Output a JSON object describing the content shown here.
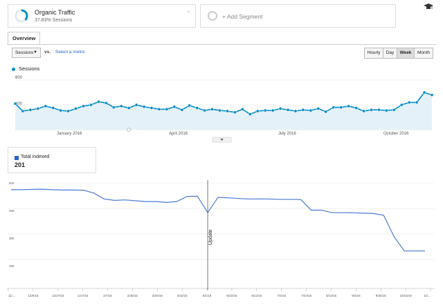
{
  "segment": {
    "title": "Organic Traffic",
    "subtitle": "37.83% Sessions",
    "ring_fraction": 0.3783,
    "ring_color": "#058dc7"
  },
  "add_segment": {
    "label": "+ Add Segment"
  },
  "tabs": [
    {
      "label": "Overview"
    }
  ],
  "metric_selector": {
    "value": "Sessions",
    "vs_label": "vs.",
    "select_metric": "Select a metric"
  },
  "granularity": [
    {
      "label": "Hourly"
    },
    {
      "label": "Day"
    },
    {
      "label": "Week",
      "active": true
    },
    {
      "label": "Month"
    }
  ],
  "sessions_chart": {
    "legend": "Sessions",
    "color": "#058dc7",
    "ylim": [
      0,
      800
    ],
    "yticks": [
      "800",
      "400"
    ],
    "xticks": [
      "January 2016",
      "April 2016",
      "July 2016",
      "October 2016"
    ],
    "values": [
      420,
      300,
      320,
      340,
      380,
      350,
      310,
      300,
      340,
      380,
      400,
      450,
      430,
      360,
      380,
      350,
      400,
      370,
      350,
      330,
      330,
      370,
      320,
      390,
      350,
      310,
      330,
      310,
      300,
      280,
      330,
      250,
      300,
      310,
      310,
      340,
      320,
      300,
      320,
      310,
      340,
      290,
      360,
      360,
      380,
      350,
      300,
      320,
      320,
      310,
      320,
      400,
      440,
      440,
      600,
      560
    ]
  },
  "indexed": {
    "label": "Total indexed",
    "value": "201",
    "color": "#2a61d0"
  },
  "indexed_chart": {
    "ylim": [
      0,
      600
    ],
    "yticks": [
      "600",
      "450",
      "300",
      "150"
    ],
    "xticks": [
      "11/...",
      "12/6/15",
      "12/27/15",
      "1/17/16",
      "2/7/16",
      "2/28/16",
      "3/20/16",
      "4/10/16",
      "5/1/16",
      "5/22/16",
      "6/12/16",
      "7/3/16",
      "7/24/16",
      "8/14/16",
      "9/4/16",
      "9/25/16",
      "10/16/16",
      "11/..."
    ],
    "annotation": "Update",
    "values": [
      560,
      560,
      562,
      563,
      560,
      558,
      558,
      557,
      540,
      505,
      497,
      500,
      495,
      490,
      490,
      485,
      490,
      520,
      522,
      425,
      515,
      512,
      508,
      505,
      506,
      505,
      503,
      503,
      502,
      440,
      440,
      425,
      425,
      424,
      422,
      420,
      410,
      285,
      200,
      200,
      200
    ]
  }
}
